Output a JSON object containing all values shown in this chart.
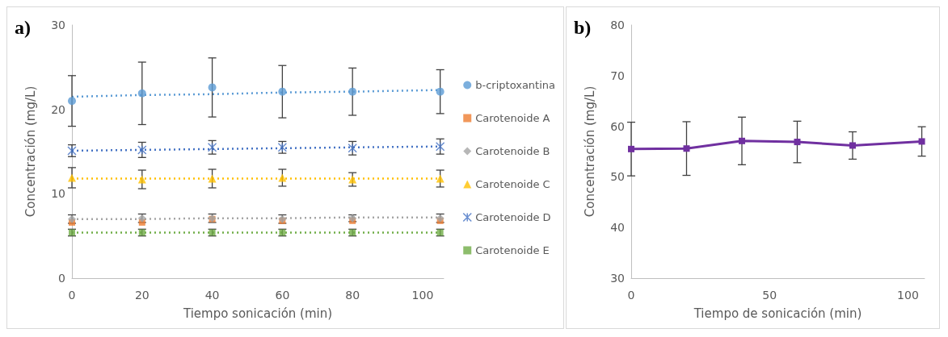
{
  "chart_data": [
    {
      "type": "scatter",
      "title": "a)",
      "xlabel": "Tiempo sonicación (min)",
      "ylabel": "Concentración (mg/L)",
      "x": [
        0,
        20,
        40,
        60,
        80,
        105
      ],
      "xlim": [
        0,
        106
      ],
      "xticks": [
        0,
        20,
        40,
        60,
        80,
        100
      ],
      "ylim": [
        0,
        30
      ],
      "yticks": [
        0,
        10,
        20,
        30
      ],
      "grid": false,
      "legend": "right",
      "series": [
        {
          "name": "b-criptoxantina",
          "color": "#5b9bd5",
          "marker": "circle",
          "values": [
            21.0,
            21.9,
            22.6,
            22.1,
            22.1,
            22.1
          ],
          "errors": [
            3.0,
            3.7,
            3.5,
            3.1,
            2.8,
            2.6
          ]
        },
        {
          "name": "Carotenoide A",
          "color": "#ed7d31",
          "marker": "square",
          "values": [
            6.6,
            6.6,
            7.0,
            6.8,
            6.8,
            6.8
          ]
        },
        {
          "name": "Carotenoide B",
          "color": "#a5a5a5",
          "marker": "diamond",
          "values": [
            7.0,
            7.1,
            7.1,
            7.0,
            7.1,
            7.1
          ],
          "errors": [
            0.5,
            0.5,
            0.5,
            0.5,
            0.4,
            0.5
          ]
        },
        {
          "name": "Carotenoide C",
          "color": "#ffc000",
          "marker": "triangle",
          "values": [
            11.9,
            11.7,
            11.8,
            11.9,
            11.7,
            11.8
          ],
          "errors": [
            1.2,
            1.1,
            1.1,
            1.0,
            0.8,
            1.0
          ]
        },
        {
          "name": "Carotenoide D",
          "color": "#4472c4",
          "marker": "cross",
          "values": [
            15.1,
            15.2,
            15.5,
            15.5,
            15.4,
            15.6
          ],
          "errors": [
            0.7,
            0.9,
            0.8,
            0.7,
            0.8,
            0.9
          ]
        },
        {
          "name": "Carotenoide E",
          "color": "#70ad47",
          "marker": "square",
          "values": [
            5.4,
            5.4,
            5.4,
            5.4,
            5.4,
            5.4
          ],
          "errors": [
            0.4,
            0.4,
            0.4,
            0.4,
            0.4,
            0.4
          ]
        },
        {
          "type": "line",
          "color": "#5b9bd5",
          "line_style": "dotted",
          "marker": "none",
          "values": [
            21.5,
            21.7,
            21.8,
            22.0,
            22.1,
            22.3
          ]
        },
        {
          "type": "line",
          "color": "#a5a5a5",
          "line_style": "dotted",
          "marker": "none",
          "values": [
            7.0,
            7.0,
            7.1,
            7.1,
            7.2,
            7.2
          ]
        },
        {
          "type": "line",
          "color": "#ffc000",
          "line_style": "dotted",
          "marker": "none",
          "values": [
            11.8,
            11.8,
            11.8,
            11.8,
            11.8,
            11.8
          ]
        },
        {
          "type": "line",
          "color": "#4472c4",
          "line_style": "dotted",
          "marker": "none",
          "values": [
            15.1,
            15.2,
            15.3,
            15.4,
            15.5,
            15.6
          ]
        },
        {
          "type": "line",
          "color": "#70ad47",
          "line_style": "dotted",
          "marker": "none",
          "values": [
            5.4,
            5.4,
            5.4,
            5.4,
            5.4,
            5.4
          ]
        }
      ]
    },
    {
      "type": "line",
      "title": "b)",
      "xlabel": "Tiempo de sonicación (min)",
      "ylabel": "Concentración (mg/L)",
      "x": [
        0,
        20,
        40,
        60,
        80,
        105
      ],
      "xlim": [
        0,
        106
      ],
      "xticks": [
        0,
        50,
        100
      ],
      "ylim": [
        30,
        80
      ],
      "yticks": [
        30,
        40,
        50,
        60,
        70,
        80
      ],
      "grid": false,
      "marker": "square",
      "line_style": "solid",
      "series": [
        {
          "color": "#7030a0",
          "values": [
            55.5,
            55.6,
            57.1,
            56.9,
            56.2,
            57.0
          ],
          "errors": [
            5.3,
            5.3,
            4.7,
            4.1,
            2.7,
            2.9
          ]
        }
      ]
    }
  ]
}
